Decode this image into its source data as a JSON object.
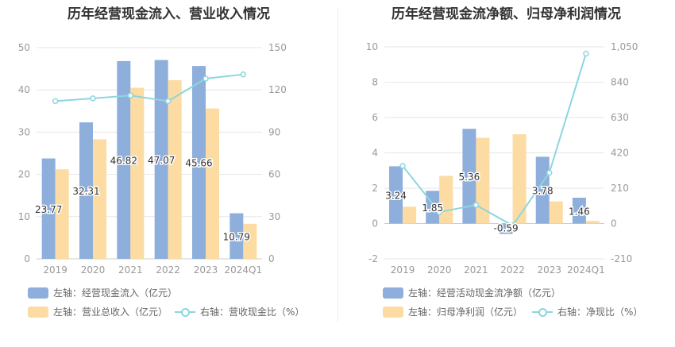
{
  "colors": {
    "bar1": "#8eaedc",
    "bar2": "#fcdca2",
    "line": "#8dd6df",
    "grid": "#e6e6e6",
    "axis_text": "#999999",
    "label_text": "#333333"
  },
  "chart_data": [
    {
      "type": "bar",
      "title": "历年经营现金流入、营业收入情况",
      "categories": [
        "2019",
        "2020",
        "2021",
        "2022",
        "2023",
        "2024Q1"
      ],
      "y_left": {
        "ylim": [
          0,
          50
        ],
        "ticks": [
          "0",
          "10",
          "20",
          "30",
          "40",
          "50"
        ]
      },
      "y_right": {
        "ylim": [
          0,
          150
        ],
        "ticks": [
          "0",
          "30",
          "60",
          "90",
          "120",
          "150"
        ]
      },
      "series": [
        {
          "name": "左轴：经营现金流入（亿元）",
          "axis": "left",
          "kind": "bar",
          "values": [
            23.77,
            32.31,
            46.82,
            47.07,
            45.66,
            10.79
          ],
          "labels": [
            "23.77",
            "32.31",
            "46.82",
            "47.07",
            "45.66",
            "10.79"
          ]
        },
        {
          "name": "左轴：营业总收入（亿元）",
          "axis": "left",
          "kind": "bar",
          "values": [
            21.2,
            28.3,
            40.5,
            42.3,
            35.6,
            8.3
          ]
        },
        {
          "name": "右轴：营收现金比（%）",
          "axis": "right",
          "kind": "line",
          "values": [
            112,
            114,
            116,
            112,
            128,
            131
          ]
        }
      ],
      "grid": true,
      "legend_position": "bottom"
    },
    {
      "type": "bar",
      "title": "历年经营现金流净额、归母净利润情况",
      "categories": [
        "2019",
        "2020",
        "2021",
        "2022",
        "2023",
        "2024Q1"
      ],
      "y_left": {
        "ylim": [
          -2,
          10
        ],
        "ticks": [
          "-2",
          "0",
          "2",
          "4",
          "6",
          "8",
          "10"
        ]
      },
      "y_right": {
        "ylim": [
          -210,
          1050
        ],
        "ticks": [
          "-210",
          "0",
          "210",
          "420",
          "630",
          "840",
          "1,050"
        ]
      },
      "series": [
        {
          "name": "左轴：经营活动现金流净额（亿元）",
          "axis": "left",
          "kind": "bar",
          "values": [
            3.24,
            1.85,
            5.36,
            -0.59,
            3.78,
            1.46
          ],
          "labels": [
            "3.24",
            "1.85",
            "5.36",
            "-0.59",
            "3.78",
            "1.46"
          ]
        },
        {
          "name": "左轴：归母净利润（亿元）",
          "axis": "left",
          "kind": "bar",
          "values": [
            0.95,
            2.7,
            4.85,
            5.05,
            1.25,
            0.15
          ]
        },
        {
          "name": "右轴：净现比（%）",
          "axis": "right",
          "kind": "line",
          "values": [
            342,
            68,
            110,
            -12,
            302,
            1010
          ]
        }
      ],
      "grid": true,
      "legend_position": "bottom"
    }
  ]
}
